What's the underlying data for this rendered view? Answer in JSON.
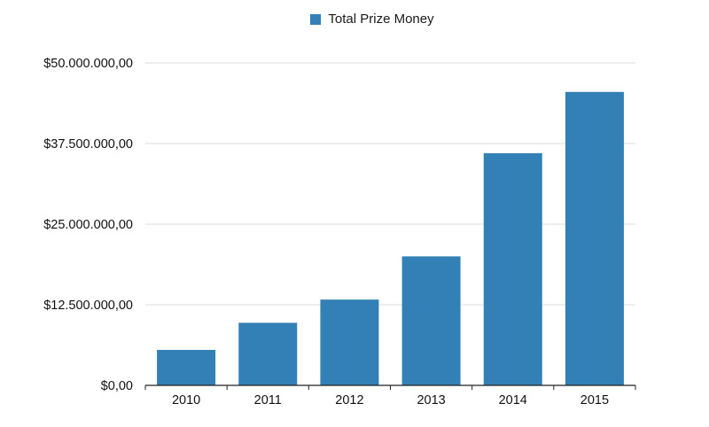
{
  "colors": {
    "bar": "#3280b5",
    "grid": "#dcdcdc",
    "axis": "#222222"
  },
  "chart_data": {
    "type": "bar",
    "title": "",
    "xlabel": "",
    "ylabel": "",
    "categories": [
      "2010",
      "2011",
      "2012",
      "2013",
      "2014",
      "2015"
    ],
    "series": [
      {
        "name": "Total Prize Money",
        "values": [
          5500000,
          9700000,
          13300000,
          20000000,
          36000000,
          45500000
        ]
      }
    ],
    "ylim": [
      0,
      50000000
    ],
    "yticks": [
      0,
      12500000,
      25000000,
      37500000,
      50000000
    ],
    "ytick_labels": [
      "$0,00",
      "$12.500.000,00",
      "$25.000.000,00",
      "$37.500.000,00",
      "$50.000.000,00"
    ],
    "grid": true,
    "legend_position": "top"
  }
}
